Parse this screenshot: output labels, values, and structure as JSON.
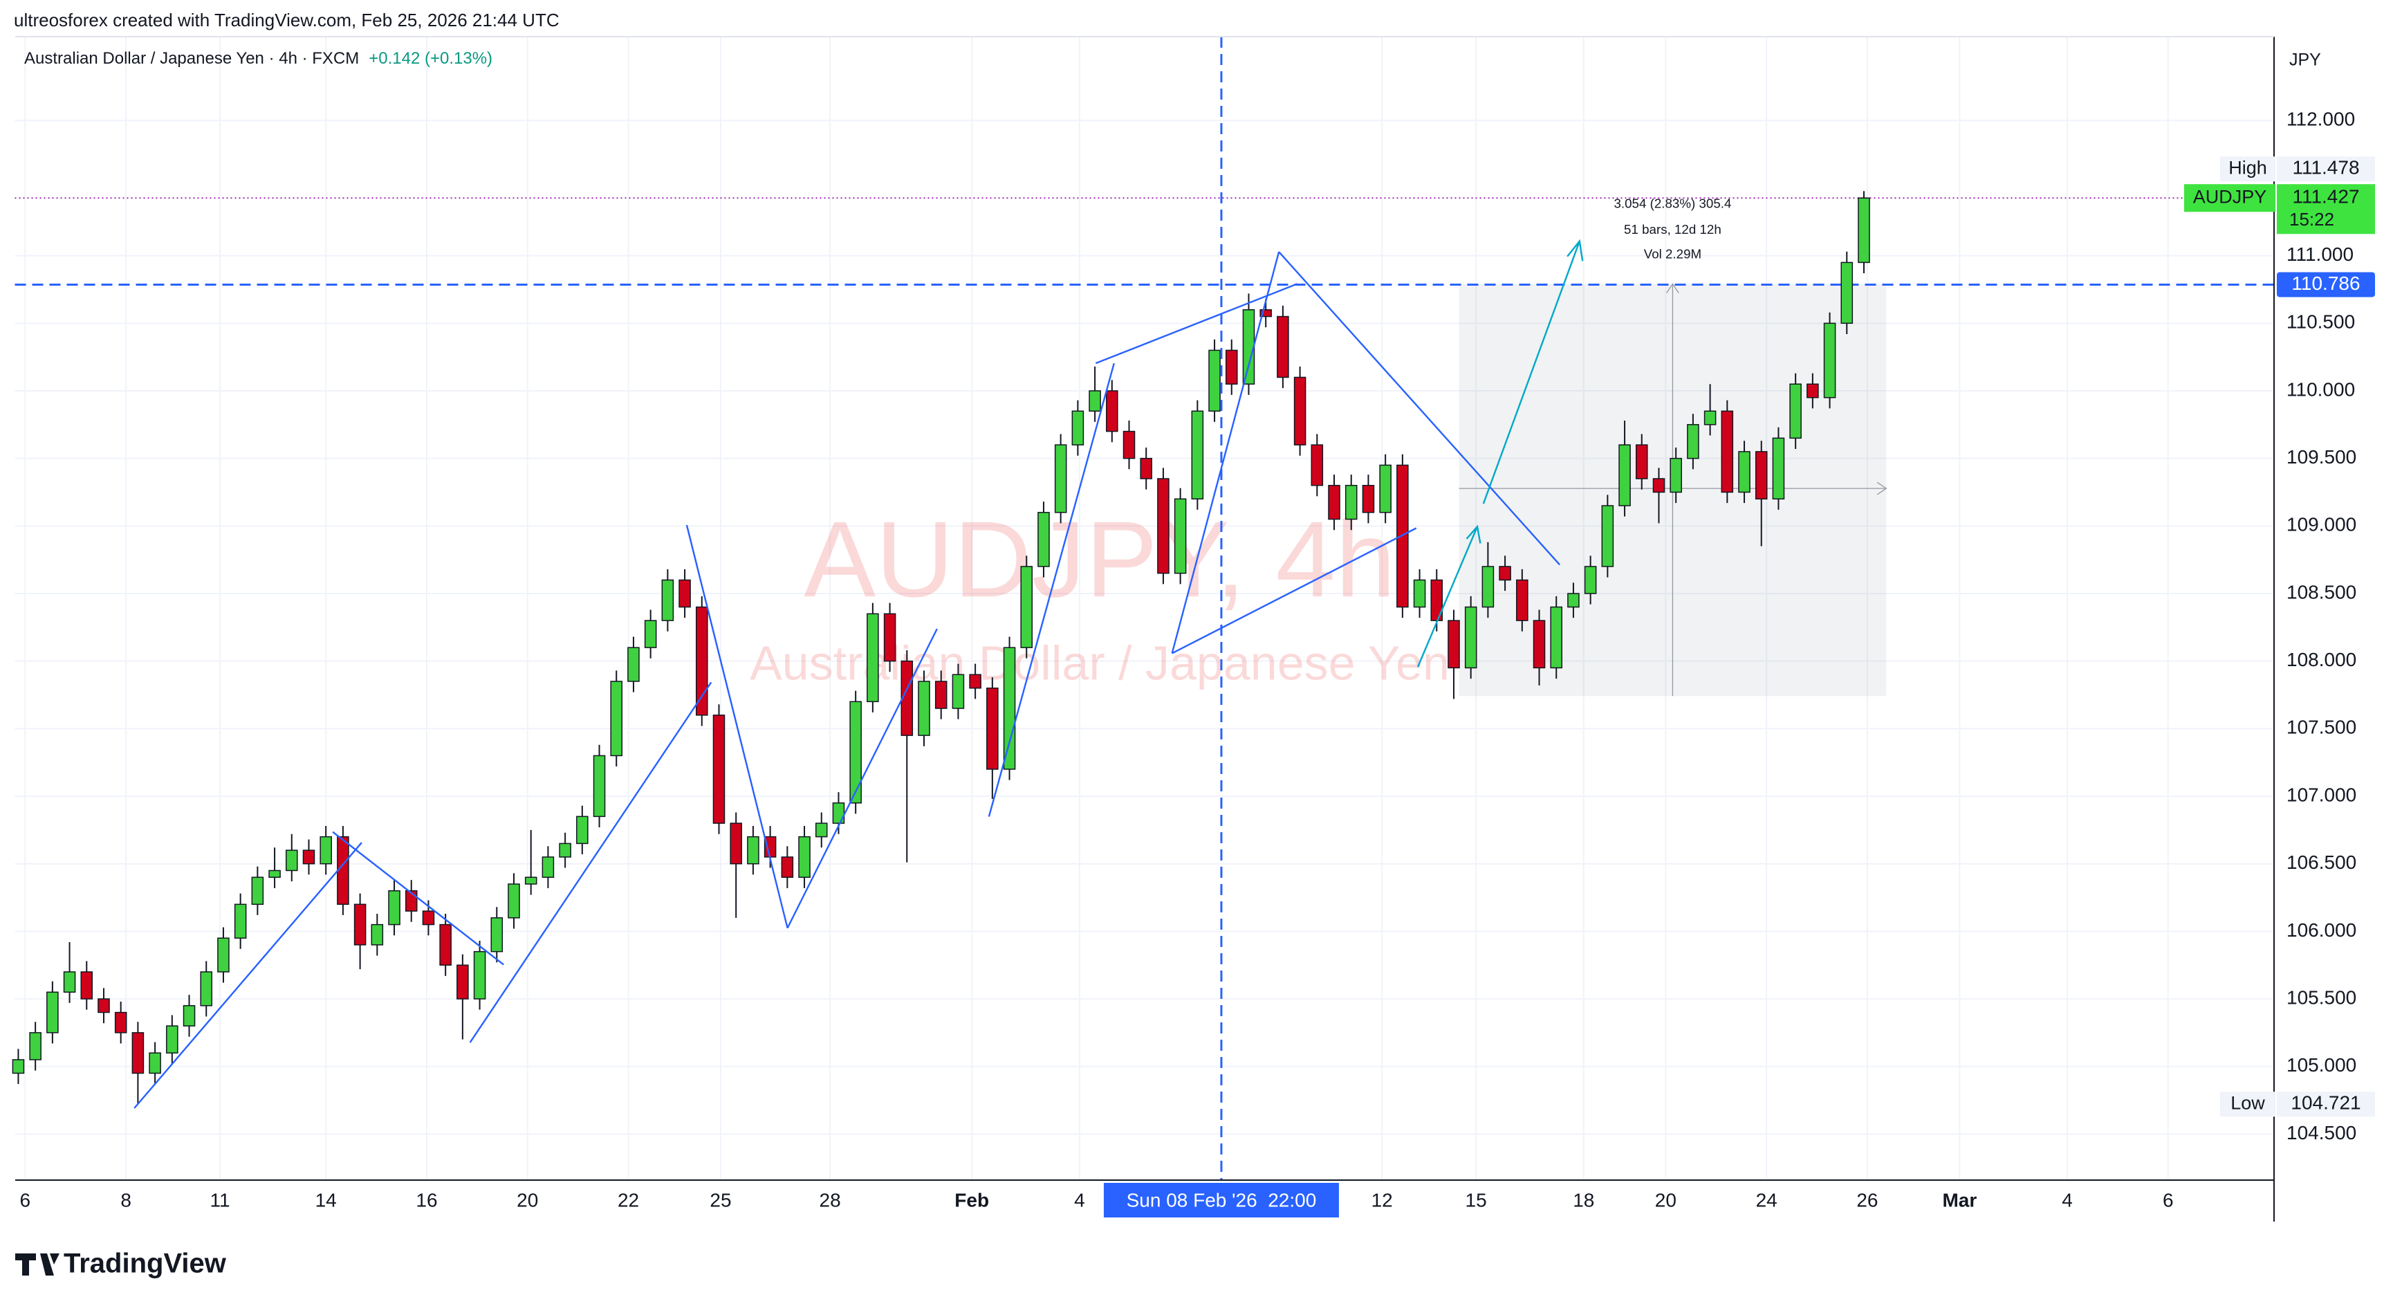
{
  "header": {
    "attribution": "ultreosforex created with TradingView.com, Feb 25, 2026 21:44 UTC",
    "symbol": "Australian Dollar / Japanese Yen · 4h · FXCM",
    "change": "+0.142 (+0.13%)"
  },
  "watermark": {
    "line1": "AUDJPY, 4h",
    "line2": "Australian Dollar / Japanese Yen"
  },
  "measure": {
    "line1": "3.054 (2.83%) 305.4",
    "line2": "51 bars, 12d 12h",
    "line3": "Vol 2.29M"
  },
  "logo": "TradingView",
  "chart_data": {
    "type": "candlestick",
    "currency": "JPY",
    "grid": true,
    "up_color": "#3fd13f",
    "down_color": "#d0021b",
    "xlim": [
      -0.2,
      132
    ],
    "ylim": [
      104.159,
      112.621
    ],
    "xticks": [
      {
        "value": 0.4,
        "label": "6"
      },
      {
        "value": 6.3,
        "label": "8"
      },
      {
        "value": 11.8,
        "label": "11"
      },
      {
        "value": 18.0,
        "label": "14"
      },
      {
        "value": 23.9,
        "label": "16"
      },
      {
        "value": 29.8,
        "label": "20"
      },
      {
        "value": 35.7,
        "label": "22"
      },
      {
        "value": 41.1,
        "label": "25"
      },
      {
        "value": 47.5,
        "label": "28"
      },
      {
        "value": 55.8,
        "label": "Feb"
      },
      {
        "value": 62.1,
        "label": "4"
      },
      {
        "value": 79.8,
        "label": "12"
      },
      {
        "value": 85.3,
        "label": "15"
      },
      {
        "value": 91.6,
        "label": "18"
      },
      {
        "value": 96.4,
        "label": "20"
      },
      {
        "value": 102.3,
        "label": "24"
      },
      {
        "value": 108.2,
        "label": "26"
      },
      {
        "value": 113.6,
        "label": "Mar"
      },
      {
        "value": 119.9,
        "label": "4"
      },
      {
        "value": 125.8,
        "label": "6"
      }
    ],
    "yticks": [
      {
        "value": 104.5,
        "label": "104.500"
      },
      {
        "value": 105,
        "label": "105.000"
      },
      {
        "value": 105.5,
        "label": "105.500"
      },
      {
        "value": 106,
        "label": "106.000"
      },
      {
        "value": 106.5,
        "label": "106.500"
      },
      {
        "value": 107,
        "label": "107.000"
      },
      {
        "value": 107.5,
        "label": "107.500"
      },
      {
        "value": 108,
        "label": "108.000"
      },
      {
        "value": 108.5,
        "label": "108.500"
      },
      {
        "value": 109,
        "label": "109.000"
      },
      {
        "value": 109.5,
        "label": "109.500"
      },
      {
        "value": 110,
        "label": "110.000"
      },
      {
        "value": 110.5,
        "label": "110.500"
      },
      {
        "value": 111,
        "label": "111.000"
      },
      {
        "value": 112,
        "label": "112.000"
      }
    ],
    "crosshair": {
      "x": 70.4,
      "label": "Sun 08 Feb '26  22:00"
    },
    "levels": [
      {
        "name": "High",
        "value": 111.478
      },
      {
        "name": "AUDJPY",
        "value": 111.427,
        "countdown": "15:22"
      },
      {
        "value": 110.786
      },
      {
        "name": "Low",
        "value": 104.721
      }
    ],
    "candles": [
      [
        104.95,
        105.13,
        104.87,
        105.05
      ],
      [
        105.05,
        105.33,
        104.97,
        105.25
      ],
      [
        105.25,
        105.63,
        105.17,
        105.55
      ],
      [
        105.55,
        105.92,
        105.47,
        105.7
      ],
      [
        105.7,
        105.78,
        105.42,
        105.5
      ],
      [
        105.5,
        105.58,
        105.32,
        105.4
      ],
      [
        105.4,
        105.48,
        105.17,
        105.25
      ],
      [
        105.25,
        105.33,
        104.721,
        104.95
      ],
      [
        104.95,
        105.18,
        104.87,
        105.1
      ],
      [
        105.1,
        105.38,
        105.02,
        105.3
      ],
      [
        105.3,
        105.53,
        105.22,
        105.45
      ],
      [
        105.45,
        105.78,
        105.37,
        105.7
      ],
      [
        105.7,
        106.03,
        105.62,
        105.95
      ],
      [
        105.95,
        106.28,
        105.87,
        106.2
      ],
      [
        106.2,
        106.48,
        106.12,
        106.4
      ],
      [
        106.4,
        106.62,
        106.32,
        106.45
      ],
      [
        106.45,
        106.72,
        106.37,
        106.6
      ],
      [
        106.6,
        106.68,
        106.42,
        106.5
      ],
      [
        106.5,
        106.78,
        106.42,
        106.7
      ],
      [
        106.7,
        106.78,
        106.12,
        106.2
      ],
      [
        106.2,
        106.28,
        105.72,
        105.9
      ],
      [
        105.9,
        106.13,
        105.82,
        106.05
      ],
      [
        106.05,
        106.38,
        105.97,
        106.3
      ],
      [
        106.3,
        106.38,
        106.07,
        106.15
      ],
      [
        106.15,
        106.23,
        105.97,
        106.05
      ],
      [
        106.05,
        106.13,
        105.67,
        105.75
      ],
      [
        105.75,
        105.83,
        105.2,
        105.5
      ],
      [
        105.5,
        105.93,
        105.42,
        105.85
      ],
      [
        105.85,
        106.18,
        105.77,
        106.1
      ],
      [
        106.1,
        106.43,
        106.02,
        106.35
      ],
      [
        106.35,
        106.75,
        106.27,
        106.4
      ],
      [
        106.4,
        106.63,
        106.32,
        106.55
      ],
      [
        106.55,
        106.73,
        106.47,
        106.65
      ],
      [
        106.65,
        106.93,
        106.57,
        106.85
      ],
      [
        106.85,
        107.38,
        106.77,
        107.3
      ],
      [
        107.3,
        107.93,
        107.22,
        107.85
      ],
      [
        107.85,
        108.18,
        107.77,
        108.1
      ],
      [
        108.1,
        108.38,
        108.02,
        108.3
      ],
      [
        108.3,
        108.68,
        108.22,
        108.6
      ],
      [
        108.6,
        108.68,
        108.32,
        108.4
      ],
      [
        108.4,
        108.48,
        107.52,
        107.6
      ],
      [
        107.6,
        107.68,
        106.72,
        106.8
      ],
      [
        106.8,
        106.88,
        106.1,
        106.5
      ],
      [
        106.5,
        106.78,
        106.42,
        106.7
      ],
      [
        106.7,
        106.78,
        106.47,
        106.55
      ],
      [
        106.55,
        106.63,
        106.32,
        106.4
      ],
      [
        106.4,
        106.78,
        106.32,
        106.7
      ],
      [
        106.7,
        106.88,
        106.62,
        106.8
      ],
      [
        106.8,
        107.03,
        106.72,
        106.95
      ],
      [
        106.95,
        107.78,
        106.87,
        107.7
      ],
      [
        107.7,
        108.43,
        107.62,
        108.35
      ],
      [
        108.35,
        108.43,
        107.92,
        108.0
      ],
      [
        108.0,
        108.08,
        106.51,
        107.45
      ],
      [
        107.45,
        107.93,
        107.37,
        107.85
      ],
      [
        107.85,
        107.93,
        107.57,
        107.65
      ],
      [
        107.65,
        107.98,
        107.57,
        107.9
      ],
      [
        107.9,
        107.98,
        107.72,
        107.8
      ],
      [
        107.8,
        107.88,
        106.98,
        107.2
      ],
      [
        107.2,
        108.18,
        107.12,
        108.1
      ],
      [
        108.1,
        108.78,
        108.02,
        108.7
      ],
      [
        108.7,
        109.18,
        108.62,
        109.1
      ],
      [
        109.1,
        109.68,
        109.02,
        109.6
      ],
      [
        109.6,
        109.93,
        109.52,
        109.85
      ],
      [
        109.85,
        110.18,
        109.77,
        110.0
      ],
      [
        110.0,
        110.08,
        109.62,
        109.7
      ],
      [
        109.7,
        109.78,
        109.42,
        109.5
      ],
      [
        109.5,
        109.58,
        109.27,
        109.35
      ],
      [
        109.35,
        109.43,
        108.57,
        108.65
      ],
      [
        108.65,
        109.28,
        108.57,
        109.2
      ],
      [
        109.2,
        109.93,
        109.12,
        109.85
      ],
      [
        109.85,
        110.38,
        109.77,
        110.3
      ],
      [
        110.3,
        110.38,
        109.97,
        110.05
      ],
      [
        110.05,
        110.72,
        109.97,
        110.6
      ],
      [
        110.6,
        110.68,
        110.47,
        110.55
      ],
      [
        110.55,
        110.63,
        110.02,
        110.1
      ],
      [
        110.1,
        110.18,
        109.52,
        109.6
      ],
      [
        109.6,
        109.68,
        109.22,
        109.3
      ],
      [
        109.3,
        109.38,
        108.97,
        109.05
      ],
      [
        109.05,
        109.38,
        108.97,
        109.3
      ],
      [
        109.3,
        109.38,
        109.02,
        109.1
      ],
      [
        109.1,
        109.53,
        109.02,
        109.45
      ],
      [
        109.45,
        109.53,
        108.32,
        108.4
      ],
      [
        108.4,
        108.68,
        108.32,
        108.6
      ],
      [
        108.6,
        108.68,
        108.22,
        108.3
      ],
      [
        108.3,
        108.38,
        107.72,
        107.95
      ],
      [
        107.95,
        108.48,
        107.87,
        108.4
      ],
      [
        108.4,
        108.88,
        108.32,
        108.7
      ],
      [
        108.7,
        108.78,
        108.52,
        108.6
      ],
      [
        108.6,
        108.68,
        108.22,
        108.3
      ],
      [
        108.3,
        108.38,
        107.82,
        107.95
      ],
      [
        107.95,
        108.48,
        107.87,
        108.4
      ],
      [
        108.4,
        108.58,
        108.32,
        108.5
      ],
      [
        108.5,
        108.78,
        108.42,
        108.7
      ],
      [
        108.7,
        109.23,
        108.62,
        109.15
      ],
      [
        109.15,
        109.78,
        109.07,
        109.6
      ],
      [
        109.6,
        109.68,
        109.27,
        109.35
      ],
      [
        109.35,
        109.43,
        109.02,
        109.25
      ],
      [
        109.25,
        109.58,
        109.17,
        109.5
      ],
      [
        109.5,
        109.83,
        109.42,
        109.75
      ],
      [
        109.75,
        110.05,
        109.67,
        109.85
      ],
      [
        109.85,
        109.93,
        109.17,
        109.25
      ],
      [
        109.25,
        109.63,
        109.17,
        109.55
      ],
      [
        109.55,
        109.63,
        108.85,
        109.2
      ],
      [
        109.2,
        109.73,
        109.12,
        109.65
      ],
      [
        109.65,
        110.13,
        109.57,
        110.05
      ],
      [
        110.05,
        110.13,
        109.87,
        109.95
      ],
      [
        109.95,
        110.58,
        109.87,
        110.5
      ],
      [
        110.5,
        111.03,
        110.42,
        110.95
      ],
      [
        110.95,
        111.478,
        110.87,
        111.427
      ]
    ]
  }
}
